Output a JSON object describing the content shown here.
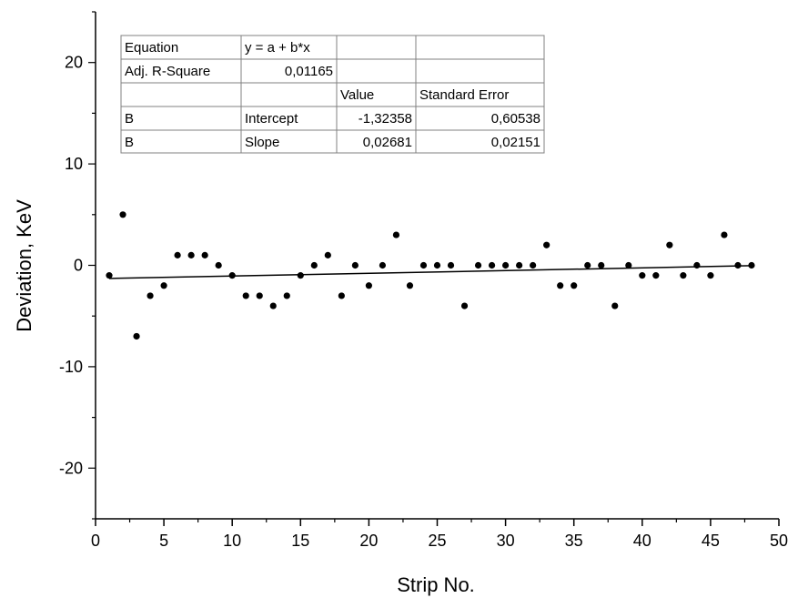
{
  "chart_data": {
    "type": "scatter",
    "xlabel": "Strip No.",
    "ylabel": "Deviation, KeV",
    "xlim": [
      0,
      50
    ],
    "ylim": [
      -25,
      25
    ],
    "x_ticks": [
      0,
      5,
      10,
      15,
      20,
      25,
      30,
      35,
      40,
      45,
      50
    ],
    "x_tick_labels": [
      "0",
      "5",
      "10",
      "15",
      "20",
      "25",
      "30",
      "35",
      "40",
      "45",
      "50"
    ],
    "y_ticks": [
      -20,
      -10,
      0,
      10,
      20
    ],
    "y_tick_labels": [
      "-20",
      "-10",
      "0",
      "10",
      "20"
    ],
    "grid": false,
    "points": {
      "x": [
        1,
        2,
        3,
        4,
        5,
        6,
        7,
        8,
        9,
        10,
        11,
        12,
        13,
        14,
        15,
        16,
        17,
        18,
        19,
        20,
        21,
        22,
        23,
        24,
        25,
        26,
        27,
        28,
        29,
        30,
        31,
        32,
        33,
        34,
        35,
        36,
        37,
        38,
        39,
        40,
        41,
        42,
        43,
        44,
        45,
        46,
        47,
        48
      ],
      "y": [
        -1,
        5,
        -7,
        -3,
        -2,
        1,
        1,
        1,
        0,
        -1,
        -3,
        -3,
        -4,
        -3,
        -1,
        0,
        1,
        -3,
        0,
        -2,
        0,
        3,
        -2,
        0,
        0,
        0,
        -4,
        0,
        0,
        0,
        0,
        0,
        2,
        -2,
        -2,
        0,
        0,
        -4,
        0,
        -1,
        -1,
        2,
        -1,
        0,
        -1,
        3,
        0,
        0
      ]
    },
    "fit_line": {
      "intercept": -1.32358,
      "slope": 0.02681,
      "x_range": [
        1,
        48
      ]
    },
    "fit_table": {
      "rows": [
        [
          "Equation",
          "y = a + b*x",
          "",
          ""
        ],
        [
          "Adj. R-Square",
          "0,01165",
          "",
          ""
        ],
        [
          "",
          "",
          "Value",
          "Standard Error"
        ],
        [
          "B",
          "Intercept",
          "-1,32358",
          "0,60538"
        ],
        [
          "B",
          "Slope",
          "0,02681",
          "0,02151"
        ]
      ]
    }
  },
  "colors": {
    "marker": "#000000",
    "axis": "#000000",
    "fit_line": "#000000",
    "table_border": "#808080"
  }
}
